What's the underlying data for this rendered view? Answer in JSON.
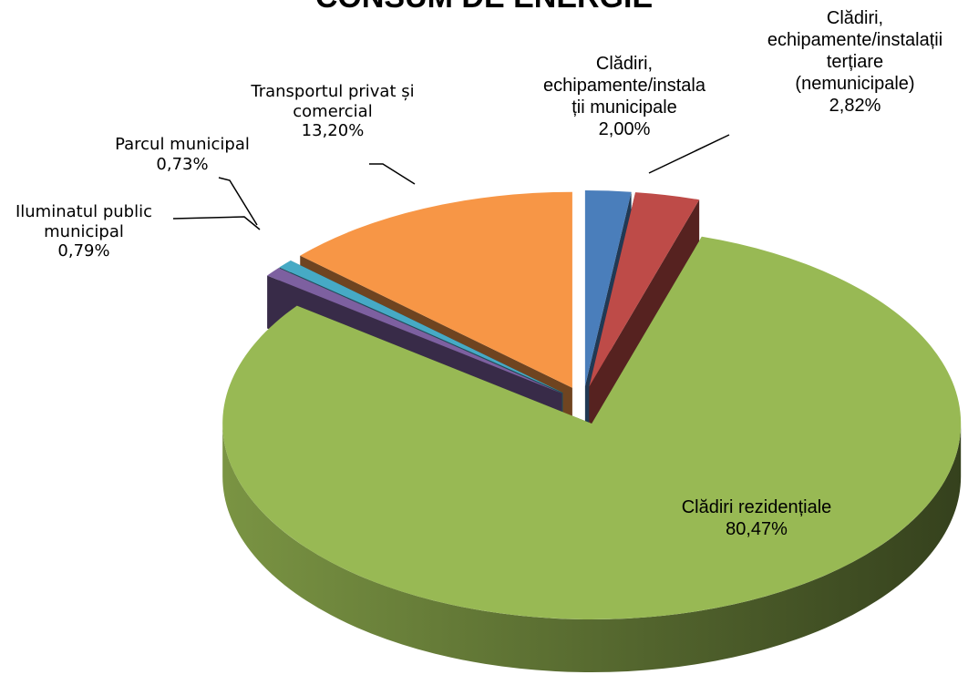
{
  "chart_data": {
    "type": "pie",
    "title": "CONSUM DE ENERGIE",
    "categories": [
      "Clădiri, echipamente/instalații municipale",
      "Clădiri, echipamente/instalații terțiare (nemunicipale)",
      "Clădiri rezidențiale",
      "Iluminatul public municipal",
      "Parcul municipal",
      "Transportul privat și comercial"
    ],
    "values": [
      2.0,
      2.82,
      80.47,
      0.79,
      0.73,
      13.2
    ],
    "value_labels": [
      "2,00%",
      "2,82%",
      "80,47%",
      "0,79%",
      "0,73%",
      "13,20%"
    ],
    "colors": [
      "#4a7ebb",
      "#be4b48",
      "#98b954",
      "#7d60a0",
      "#46aac5",
      "#f79646"
    ]
  }
}
